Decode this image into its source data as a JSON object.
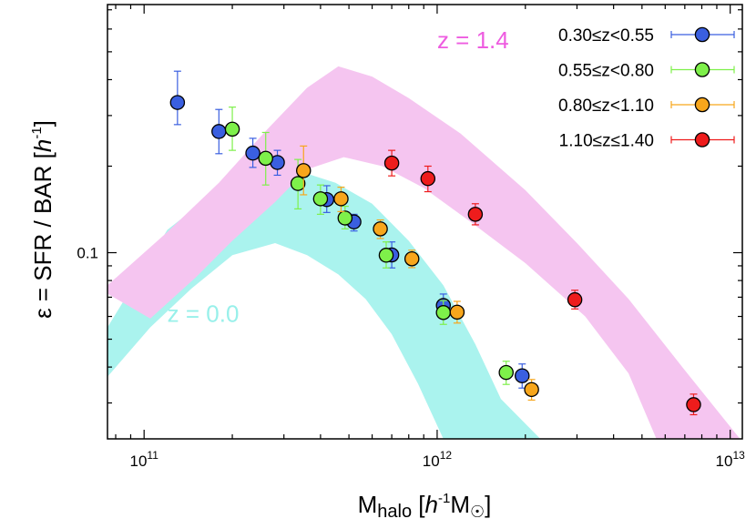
{
  "chart_data": {
    "type": "scatter",
    "x_scale": "log",
    "y_scale": "log",
    "xlim": [
      75000000000.0,
      11000000000000.0
    ],
    "ylim": [
      0.0225,
      0.73
    ],
    "xlabel": {
      "main": "M",
      "sub": "halo",
      "open": " [",
      "italic": "h",
      "sup": "-1",
      "unit": "M",
      "sun": "☉",
      "close": "]"
    },
    "ylabel": {
      "main": "ε = SFR / BAR [",
      "italic": "h",
      "sup": "-1",
      "close": "]"
    },
    "x_ticks": [
      {
        "value": 100000000000.0,
        "base": "10",
        "exp": "11"
      },
      {
        "value": 1000000000000.0,
        "base": "10",
        "exp": "12"
      },
      {
        "value": 10000000000000.0,
        "base": "10",
        "exp": "13"
      }
    ],
    "y_ticks": [
      {
        "value": 0.1,
        "label": "0.1"
      }
    ],
    "bands": [
      {
        "name": "z = 0.0",
        "label": "z = 0.0",
        "color": "#aaf3ee",
        "label_pos": [
          120000000000.0,
          0.0575
        ],
        "upper": [
          [
            75000000000.0,
            0.055
          ],
          [
            120000000000.0,
            0.12
          ],
          [
            165000000000.0,
            0.155
          ],
          [
            220000000000.0,
            0.185
          ],
          [
            280000000000.0,
            0.197
          ],
          [
            350000000000.0,
            0.19
          ],
          [
            450000000000.0,
            0.175
          ],
          [
            600000000000.0,
            0.148
          ],
          [
            800000000000.0,
            0.11
          ],
          [
            1050000000000.0,
            0.077
          ],
          [
            1350000000000.0,
            0.048
          ],
          [
            1650000000000.0,
            0.031
          ],
          [
            2250000000000.0,
            0.0225
          ]
        ],
        "lower": [
          [
            75000000000.0,
            0.037
          ],
          [
            105000000000.0,
            0.055
          ],
          [
            145000000000.0,
            0.075
          ],
          [
            200000000000.0,
            0.098
          ],
          [
            280000000000.0,
            0.108
          ],
          [
            360000000000.0,
            0.098
          ],
          [
            460000000000.0,
            0.084
          ],
          [
            570000000000.0,
            0.069
          ],
          [
            700000000000.0,
            0.052
          ],
          [
            860000000000.0,
            0.035
          ],
          [
            1050000000000.0,
            0.0225
          ]
        ]
      },
      {
        "name": "z = 1.4",
        "label": "z = 1.4",
        "color": "#f5c5f0",
        "label_pos": [
          1000000000000.0,
          0.515
        ],
        "upper": [
          [
            75000000000.0,
            0.077
          ],
          [
            120000000000.0,
            0.118
          ],
          [
            180000000000.0,
            0.175
          ],
          [
            260000000000.0,
            0.265
          ],
          [
            360000000000.0,
            0.375
          ],
          [
            460000000000.0,
            0.445
          ],
          [
            600000000000.0,
            0.41
          ],
          [
            800000000000.0,
            0.345
          ],
          [
            1200000000000.0,
            0.26
          ],
          [
            2000000000000.0,
            0.165
          ],
          [
            3000000000000.0,
            0.108
          ],
          [
            4500000000000.0,
            0.069
          ],
          [
            7000000000000.0,
            0.039
          ],
          [
            10800000000000.0,
            0.0225
          ]
        ],
        "lower": [
          [
            75000000000.0,
            0.072
          ],
          [
            105000000000.0,
            0.059
          ],
          [
            150000000000.0,
            0.082
          ],
          [
            200000000000.0,
            0.11
          ],
          [
            280000000000.0,
            0.15
          ],
          [
            360000000000.0,
            0.195
          ],
          [
            480000000000.0,
            0.215
          ],
          [
            650000000000.0,
            0.2
          ],
          [
            900000000000.0,
            0.168
          ],
          [
            1300000000000.0,
            0.128
          ],
          [
            2000000000000.0,
            0.092
          ],
          [
            3200000000000.0,
            0.06
          ],
          [
            4500000000000.0,
            0.038
          ],
          [
            5600000000000.0,
            0.0225
          ]
        ]
      }
    ],
    "series": [
      {
        "name": "0.30≤z<0.55",
        "color": "#3a5fe0",
        "points": [
          {
            "x": 130000000000.0,
            "y": 0.333,
            "lo": 0.279,
            "hi": 0.428
          },
          {
            "x": 180000000000.0,
            "y": 0.264,
            "lo": 0.221,
            "hi": 0.315
          },
          {
            "x": 235000000000.0,
            "y": 0.222,
            "lo": 0.198,
            "hi": 0.25
          },
          {
            "x": 285000000000.0,
            "y": 0.206,
            "lo": 0.186,
            "hi": 0.227
          },
          {
            "x": 420000000000.0,
            "y": 0.153,
            "lo": 0.138,
            "hi": 0.171
          },
          {
            "x": 520000000000.0,
            "y": 0.128,
            "lo": 0.119,
            "hi": 0.136
          },
          {
            "x": 700000000000.0,
            "y": 0.0982,
            "lo": 0.0885,
            "hi": 0.109
          },
          {
            "x": 1050000000000.0,
            "y": 0.0655,
            "lo": 0.0593,
            "hi": 0.0718
          },
          {
            "x": 1950000000000.0,
            "y": 0.0373,
            "lo": 0.0338,
            "hi": 0.041
          }
        ]
      },
      {
        "name": "0.55≤z<0.80",
        "color": "#7ef04a",
        "points": [
          {
            "x": 200000000000.0,
            "y": 0.269,
            "lo": 0.227,
            "hi": 0.321
          },
          {
            "x": 260000000000.0,
            "y": 0.213,
            "lo": 0.172,
            "hi": 0.262
          },
          {
            "x": 335000000000.0,
            "y": 0.174,
            "lo": 0.142,
            "hi": 0.211
          },
          {
            "x": 400000000000.0,
            "y": 0.154,
            "lo": 0.136,
            "hi": 0.172
          },
          {
            "x": 485000000000.0,
            "y": 0.132,
            "lo": 0.121,
            "hi": 0.145
          },
          {
            "x": 670000000000.0,
            "y": 0.098,
            "lo": 0.0885,
            "hi": 0.109
          },
          {
            "x": 1050000000000.0,
            "y": 0.0619,
            "lo": 0.0563,
            "hi": 0.0681
          },
          {
            "x": 1720000000000.0,
            "y": 0.0383,
            "lo": 0.0348,
            "hi": 0.0419
          }
        ]
      },
      {
        "name": "0.80≤z<1.10",
        "color": "#f7a61c",
        "points": [
          {
            "x": 350000000000.0,
            "y": 0.193,
            "lo": 0.159,
            "hi": 0.235
          },
          {
            "x": 470000000000.0,
            "y": 0.154,
            "lo": 0.139,
            "hi": 0.169
          },
          {
            "x": 640000000000.0,
            "y": 0.121,
            "lo": 0.112,
            "hi": 0.13
          },
          {
            "x": 820000000000.0,
            "y": 0.0952,
            "lo": 0.0887,
            "hi": 0.102
          },
          {
            "x": 1170000000000.0,
            "y": 0.0621,
            "lo": 0.0569,
            "hi": 0.0677
          },
          {
            "x": 2100000000000.0,
            "y": 0.0334,
            "lo": 0.0307,
            "hi": 0.0362
          }
        ]
      },
      {
        "name": "1.10≤z≤1.40",
        "color": "#ee1c1c",
        "points": [
          {
            "x": 700000000000.0,
            "y": 0.205,
            "lo": 0.185,
            "hi": 0.227
          },
          {
            "x": 930000000000.0,
            "y": 0.181,
            "lo": 0.163,
            "hi": 0.2
          },
          {
            "x": 1350000000000.0,
            "y": 0.136,
            "lo": 0.125,
            "hi": 0.148
          },
          {
            "x": 2950000000000.0,
            "y": 0.0686,
            "lo": 0.0637,
            "hi": 0.074
          },
          {
            "x": 7500000000000.0,
            "y": 0.0296,
            "lo": 0.0273,
            "hi": 0.0322
          }
        ]
      }
    ],
    "legend": {
      "position": "top-right"
    }
  }
}
